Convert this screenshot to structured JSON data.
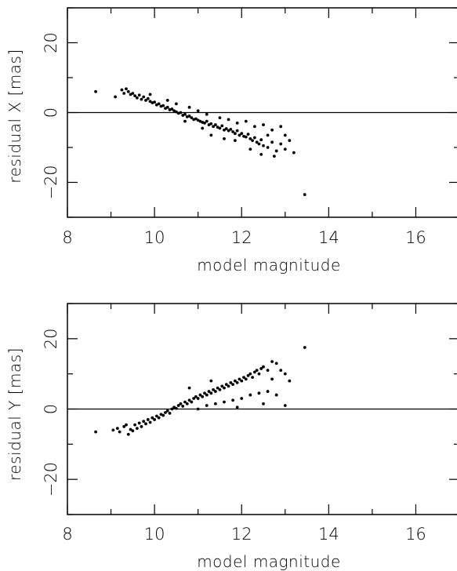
{
  "chart_data": [
    {
      "type": "scatter",
      "xlabel": "model magnitude",
      "ylabel": "residual X [mas]",
      "xlim": [
        8,
        17
      ],
      "ylim": [
        -30,
        30
      ],
      "xticks": [
        8,
        10,
        12,
        14,
        16
      ],
      "yticks": [
        -20,
        0,
        20
      ],
      "zero_line": true,
      "series": [
        {
          "points": [
            [
              8.65,
              6
            ],
            [
              9.1,
              4.5
            ],
            [
              9.25,
              6.5
            ],
            [
              9.3,
              5.5
            ],
            [
              9.35,
              6.8
            ],
            [
              9.4,
              6
            ],
            [
              9.45,
              5.2
            ],
            [
              9.5,
              5.5
            ],
            [
              9.55,
              4.8
            ],
            [
              9.6,
              4.2
            ],
            [
              9.65,
              5
            ],
            [
              9.7,
              3.8
            ],
            [
              9.75,
              4.5
            ],
            [
              9.8,
              3.5
            ],
            [
              9.85,
              4
            ],
            [
              9.9,
              3.2
            ],
            [
              9.95,
              2.8
            ],
            [
              10.0,
              3
            ],
            [
              10.05,
              2.2
            ],
            [
              10.1,
              2.5
            ],
            [
              10.15,
              1.8
            ],
            [
              10.2,
              2
            ],
            [
              10.25,
              1.2
            ],
            [
              10.3,
              1.5
            ],
            [
              10.35,
              0.8
            ],
            [
              10.4,
              1
            ],
            [
              10.45,
              0.5
            ],
            [
              10.5,
              0.2
            ],
            [
              10.55,
              -0.2
            ],
            [
              10.6,
              0
            ],
            [
              10.65,
              -0.8
            ],
            [
              10.7,
              -0.5
            ],
            [
              10.75,
              -1.2
            ],
            [
              10.8,
              -1
            ],
            [
              10.85,
              -1.5
            ],
            [
              10.9,
              -2
            ],
            [
              10.95,
              -1.8
            ],
            [
              11.0,
              -2.2
            ],
            [
              11.05,
              -2.5
            ],
            [
              11.1,
              -2.8
            ],
            [
              11.15,
              -3
            ],
            [
              11.2,
              -2.5
            ],
            [
              11.25,
              -3.5
            ],
            [
              11.3,
              -3.2
            ],
            [
              11.35,
              -4
            ],
            [
              11.4,
              -3.5
            ],
            [
              11.45,
              -4.2
            ],
            [
              11.5,
              -4.5
            ],
            [
              11.55,
              -3.8
            ],
            [
              11.6,
              -5
            ],
            [
              11.65,
              -4.6
            ],
            [
              11.7,
              -5.2
            ],
            [
              11.75,
              -4.8
            ],
            [
              11.8,
              -5.5
            ],
            [
              11.85,
              -6
            ],
            [
              11.9,
              -5.2
            ],
            [
              11.95,
              -6.5
            ],
            [
              12.0,
              -6
            ],
            [
              12.05,
              -6.8
            ],
            [
              12.1,
              -7
            ],
            [
              12.15,
              -6.2
            ],
            [
              12.2,
              -7.5
            ],
            [
              12.25,
              -8
            ],
            [
              12.3,
              -7.2
            ],
            [
              12.35,
              -8.5
            ],
            [
              12.4,
              -9
            ],
            [
              12.45,
              -7.8
            ],
            [
              12.5,
              -9.5
            ],
            [
              12.6,
              -10
            ],
            [
              12.7,
              -8.5
            ],
            [
              12.8,
              -11
            ],
            [
              12.9,
              -9
            ],
            [
              13.0,
              -10.5
            ],
            [
              13.1,
              -8
            ],
            [
              13.2,
              -11.5
            ],
            [
              13.45,
              -23.5
            ],
            [
              11.3,
              -6.5
            ],
            [
              11.5,
              -1.5
            ],
            [
              11.7,
              -2
            ],
            [
              11.9,
              -3
            ],
            [
              12.1,
              -2.5
            ],
            [
              12.3,
              -4
            ],
            [
              12.5,
              -3.5
            ],
            [
              12.7,
              -5
            ],
            [
              12.9,
              -4
            ],
            [
              13.0,
              -6.5
            ],
            [
              12.2,
              -10.5
            ],
            [
              12.6,
              -6.5
            ],
            [
              11.6,
              -7.5
            ],
            [
              11.85,
              -8
            ],
            [
              12.45,
              -12
            ],
            [
              12.75,
              -12.5
            ],
            [
              10.5,
              2.5
            ],
            [
              10.8,
              1.5
            ],
            [
              11.0,
              0.5
            ],
            [
              11.2,
              -0.5
            ],
            [
              10.7,
              -2.5
            ],
            [
              11.1,
              -4.5
            ],
            [
              10.3,
              3.5
            ],
            [
              9.9,
              5.2
            ]
          ]
        }
      ]
    },
    {
      "type": "scatter",
      "xlabel": "model magnitude",
      "ylabel": "residual Y [mas]",
      "xlim": [
        8,
        17
      ],
      "ylim": [
        -30,
        30
      ],
      "xticks": [
        8,
        10,
        12,
        14,
        16
      ],
      "yticks": [
        -20,
        0,
        20
      ],
      "zero_line": true,
      "series": [
        {
          "points": [
            [
              8.65,
              -6.5
            ],
            [
              9.05,
              -6
            ],
            [
              9.15,
              -5.5
            ],
            [
              9.2,
              -6.5
            ],
            [
              9.3,
              -5
            ],
            [
              9.35,
              -4.5
            ],
            [
              9.4,
              -7.2
            ],
            [
              9.45,
              -5.8
            ],
            [
              9.5,
              -6.2
            ],
            [
              9.55,
              -4.5
            ],
            [
              9.6,
              -5.5
            ],
            [
              9.65,
              -4
            ],
            [
              9.7,
              -5
            ],
            [
              9.75,
              -3.5
            ],
            [
              9.8,
              -4.2
            ],
            [
              9.85,
              -3
            ],
            [
              9.9,
              -3.8
            ],
            [
              9.95,
              -2.5
            ],
            [
              10.0,
              -3
            ],
            [
              10.05,
              -2
            ],
            [
              10.1,
              -2.5
            ],
            [
              10.15,
              -1.5
            ],
            [
              10.2,
              -1.8
            ],
            [
              10.25,
              -1
            ],
            [
              10.3,
              -0.5
            ],
            [
              10.35,
              -1.2
            ],
            [
              10.4,
              0
            ],
            [
              10.45,
              0.5
            ],
            [
              10.5,
              0.2
            ],
            [
              10.55,
              1
            ],
            [
              10.6,
              1.5
            ],
            [
              10.65,
              0.8
            ],
            [
              10.7,
              2
            ],
            [
              10.75,
              1.5
            ],
            [
              10.8,
              2.5
            ],
            [
              10.85,
              2
            ],
            [
              10.9,
              3
            ],
            [
              10.95,
              3.5
            ],
            [
              11.0,
              3
            ],
            [
              11.05,
              4
            ],
            [
              11.1,
              3.5
            ],
            [
              11.15,
              4.5
            ],
            [
              11.2,
              4
            ],
            [
              11.25,
              5
            ],
            [
              11.3,
              4.5
            ],
            [
              11.35,
              5.5
            ],
            [
              11.4,
              5
            ],
            [
              11.45,
              6
            ],
            [
              11.5,
              5.5
            ],
            [
              11.55,
              6.5
            ],
            [
              11.6,
              6
            ],
            [
              11.65,
              7
            ],
            [
              11.7,
              6.5
            ],
            [
              11.75,
              7.5
            ],
            [
              11.8,
              7
            ],
            [
              11.85,
              8
            ],
            [
              11.9,
              7.5
            ],
            [
              11.95,
              8.5
            ],
            [
              12.0,
              8
            ],
            [
              12.05,
              9
            ],
            [
              12.1,
              8.5
            ],
            [
              12.15,
              9.5
            ],
            [
              12.2,
              10
            ],
            [
              12.25,
              9
            ],
            [
              12.3,
              10.5
            ],
            [
              12.35,
              11
            ],
            [
              12.4,
              10
            ],
            [
              12.45,
              11.5
            ],
            [
              12.5,
              12
            ],
            [
              12.6,
              11
            ],
            [
              12.7,
              13.5
            ],
            [
              12.8,
              13
            ],
            [
              12.9,
              11
            ],
            [
              13.0,
              10
            ],
            [
              13.1,
              8
            ],
            [
              13.45,
              17.5
            ],
            [
              11.0,
              0
            ],
            [
              11.2,
              1
            ],
            [
              11.4,
              1.5
            ],
            [
              11.6,
              2
            ],
            [
              11.8,
              2.5
            ],
            [
              12.0,
              3
            ],
            [
              12.2,
              4
            ],
            [
              12.4,
              4.5
            ],
            [
              12.6,
              5
            ],
            [
              12.8,
              4
            ],
            [
              13.0,
              1
            ],
            [
              12.5,
              1.5
            ],
            [
              11.9,
              0.5
            ],
            [
              12.7,
              8.5
            ],
            [
              11.3,
              8
            ],
            [
              10.8,
              6
            ]
          ]
        }
      ]
    }
  ]
}
